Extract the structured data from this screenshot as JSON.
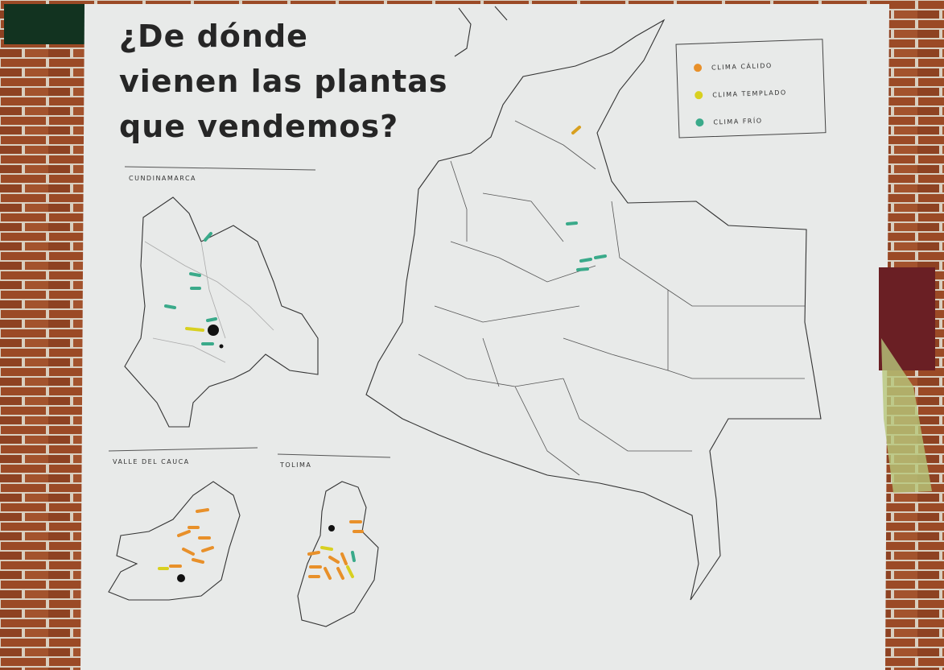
{
  "poster": {
    "title_lines": [
      "¿De dónde",
      "vienen las plantas",
      "que vendemos?"
    ],
    "legend": [
      "CLIMA CÁLIDO",
      "CLIMA TEMPLADO",
      "CLIMA FRÍO"
    ],
    "regions": [
      "CUNDINAMARCA",
      "VALLE DEL CAUCA",
      "TOLIMA"
    ]
  }
}
